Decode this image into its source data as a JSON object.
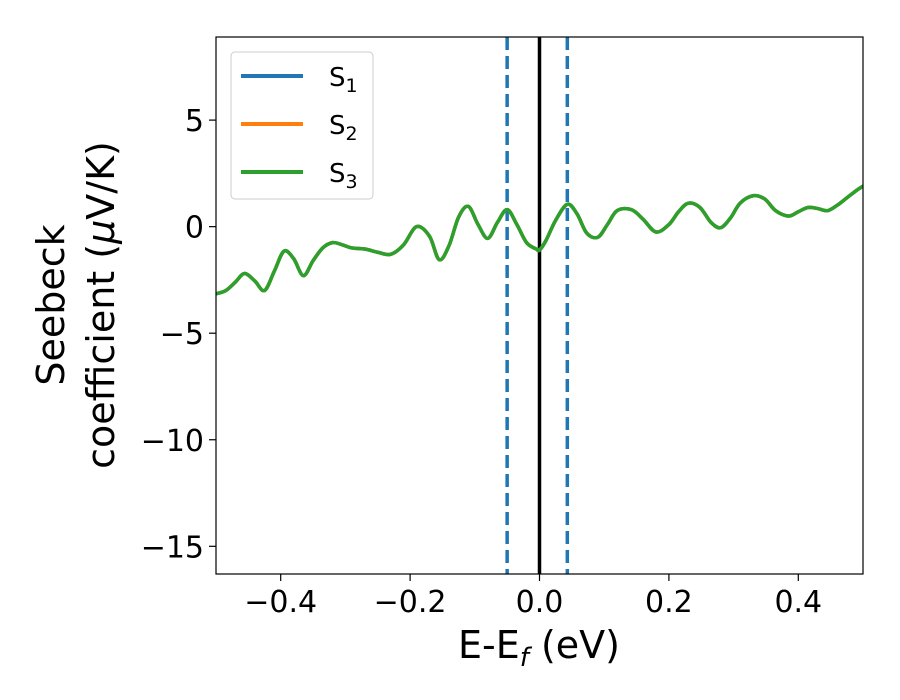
{
  "chart_data": {
    "type": "line",
    "xlabel": "E-E",
    "xlabel_sub": "f",
    "xlabel_unit": " (eV)",
    "ylabel_line1": "Seebeck",
    "ylabel_line2": "coefficient  (",
    "ylabel_mu": "μ",
    "ylabel_unit": "V/K)",
    "xlim": [
      -0.5,
      0.5
    ],
    "ylim": [
      -16.3,
      8.9
    ],
    "xticks": [
      -0.4,
      -0.2,
      0.0,
      0.2,
      0.4
    ],
    "xtick_labels": [
      "−0.4",
      "−0.2",
      "0.0",
      "0.2",
      "0.4"
    ],
    "yticks": [
      -15,
      -10,
      -5,
      0,
      5
    ],
    "ytick_labels": [
      "−15",
      "−10",
      "−5",
      "0",
      "5"
    ],
    "grid": false,
    "legend": {
      "placement": "top-left",
      "entries": [
        {
          "base": "S",
          "sub": "1",
          "color": "#1f77b4"
        },
        {
          "base": "S",
          "sub": "2",
          "color": "#ff7f0e"
        },
        {
          "base": "S",
          "sub": "3",
          "color": "#2ca02c"
        }
      ]
    },
    "vlines": [
      {
        "x": -0.05,
        "style": "dashed",
        "color": "#1f77b4"
      },
      {
        "x": 0.0,
        "style": "solid",
        "color": "#000000"
      },
      {
        "x": 0.043,
        "style": "dashed",
        "color": "#1f77b4"
      }
    ],
    "series": [
      {
        "name": "S1",
        "color": "#1f77b4",
        "x": [
          -0.5,
          -0.485,
          -0.47,
          -0.456,
          -0.44,
          -0.425,
          -0.41,
          -0.395,
          -0.38,
          -0.365,
          -0.35,
          -0.335,
          -0.32,
          -0.305,
          -0.29,
          -0.27,
          -0.25,
          -0.23,
          -0.21,
          -0.19,
          -0.17,
          -0.155,
          -0.14,
          -0.125,
          -0.11,
          -0.095,
          -0.08,
          -0.065,
          -0.05,
          -0.035,
          -0.02,
          -0.005,
          0.0,
          0.01,
          0.025,
          0.043,
          0.058,
          0.073,
          0.09,
          0.105,
          0.12,
          0.142,
          0.16,
          0.18,
          0.2,
          0.215,
          0.23,
          0.248,
          0.265,
          0.28,
          0.295,
          0.31,
          0.33,
          0.348,
          0.365,
          0.385,
          0.4,
          0.415,
          0.43,
          0.445,
          0.46,
          0.475,
          0.49,
          0.5
        ],
        "values": [
          -3.15,
          -3.0,
          -2.6,
          -2.2,
          -2.55,
          -3.0,
          -2.1,
          -1.15,
          -1.5,
          -2.3,
          -1.6,
          -1.0,
          -0.75,
          -0.85,
          -1.0,
          -1.05,
          -1.2,
          -1.3,
          -0.85,
          0.0,
          -0.45,
          -1.55,
          -0.9,
          0.45,
          0.95,
          0.1,
          -0.55,
          0.2,
          0.8,
          0.1,
          -0.75,
          -1.05,
          -1.1,
          -0.65,
          0.3,
          1.05,
          0.6,
          -0.3,
          -0.5,
          0.1,
          0.75,
          0.8,
          0.35,
          -0.25,
          0.1,
          0.7,
          1.1,
          0.9,
          0.2,
          -0.05,
          0.4,
          1.1,
          1.45,
          1.3,
          0.75,
          0.5,
          0.7,
          0.9,
          0.85,
          0.75,
          1.0,
          1.35,
          1.7,
          1.9
        ]
      },
      {
        "name": "S2",
        "color": "#ff7f0e",
        "x": [
          -0.5,
          -0.485,
          -0.47,
          -0.456,
          -0.44,
          -0.425,
          -0.41,
          -0.395,
          -0.38,
          -0.365,
          -0.35,
          -0.335,
          -0.32,
          -0.305,
          -0.29,
          -0.27,
          -0.25,
          -0.23,
          -0.21,
          -0.19,
          -0.17,
          -0.155,
          -0.14,
          -0.125,
          -0.11,
          -0.095,
          -0.08,
          -0.065,
          -0.05,
          -0.035,
          -0.02,
          -0.005,
          0.0,
          0.01,
          0.025,
          0.043,
          0.058,
          0.073,
          0.09,
          0.105,
          0.12,
          0.142,
          0.16,
          0.18,
          0.2,
          0.215,
          0.23,
          0.248,
          0.265,
          0.28,
          0.295,
          0.31,
          0.33,
          0.348,
          0.365,
          0.385,
          0.4,
          0.415,
          0.43,
          0.445,
          0.46,
          0.475,
          0.49,
          0.5
        ],
        "values": [
          -3.15,
          -3.0,
          -2.6,
          -2.2,
          -2.55,
          -3.0,
          -2.1,
          -1.15,
          -1.5,
          -2.3,
          -1.6,
          -1.0,
          -0.75,
          -0.85,
          -1.0,
          -1.05,
          -1.2,
          -1.3,
          -0.85,
          0.0,
          -0.45,
          -1.55,
          -0.9,
          0.45,
          0.95,
          0.1,
          -0.55,
          0.2,
          0.8,
          0.1,
          -0.75,
          -1.05,
          -1.1,
          -0.65,
          0.3,
          1.05,
          0.6,
          -0.3,
          -0.5,
          0.1,
          0.75,
          0.8,
          0.35,
          -0.25,
          0.1,
          0.7,
          1.1,
          0.9,
          0.2,
          -0.05,
          0.4,
          1.1,
          1.45,
          1.3,
          0.75,
          0.5,
          0.7,
          0.9,
          0.85,
          0.75,
          1.0,
          1.35,
          1.7,
          1.9
        ]
      },
      {
        "name": "S3",
        "color": "#2ca02c",
        "x": [
          -0.5,
          -0.485,
          -0.47,
          -0.456,
          -0.44,
          -0.425,
          -0.41,
          -0.395,
          -0.38,
          -0.365,
          -0.35,
          -0.335,
          -0.32,
          -0.305,
          -0.29,
          -0.27,
          -0.25,
          -0.23,
          -0.21,
          -0.19,
          -0.17,
          -0.155,
          -0.14,
          -0.125,
          -0.11,
          -0.095,
          -0.08,
          -0.065,
          -0.05,
          -0.035,
          -0.02,
          -0.005,
          0.0,
          0.01,
          0.025,
          0.043,
          0.058,
          0.073,
          0.09,
          0.105,
          0.12,
          0.142,
          0.16,
          0.18,
          0.2,
          0.215,
          0.23,
          0.248,
          0.265,
          0.28,
          0.295,
          0.31,
          0.33,
          0.348,
          0.365,
          0.385,
          0.4,
          0.415,
          0.43,
          0.445,
          0.46,
          0.475,
          0.49,
          0.5
        ],
        "values": [
          -3.15,
          -3.0,
          -2.6,
          -2.2,
          -2.55,
          -3.0,
          -2.1,
          -1.15,
          -1.5,
          -2.3,
          -1.6,
          -1.0,
          -0.75,
          -0.85,
          -1.0,
          -1.05,
          -1.2,
          -1.3,
          -0.85,
          0.0,
          -0.45,
          -1.55,
          -0.9,
          0.45,
          0.95,
          0.1,
          -0.55,
          0.2,
          0.8,
          0.1,
          -0.75,
          -1.05,
          -1.1,
          -0.65,
          0.3,
          1.05,
          0.6,
          -0.3,
          -0.5,
          0.1,
          0.75,
          0.8,
          0.35,
          -0.25,
          0.1,
          0.7,
          1.1,
          0.9,
          0.2,
          -0.05,
          0.4,
          1.1,
          1.45,
          1.3,
          0.75,
          0.5,
          0.7,
          0.9,
          0.85,
          0.75,
          1.0,
          1.35,
          1.7,
          1.9
        ]
      }
    ]
  }
}
